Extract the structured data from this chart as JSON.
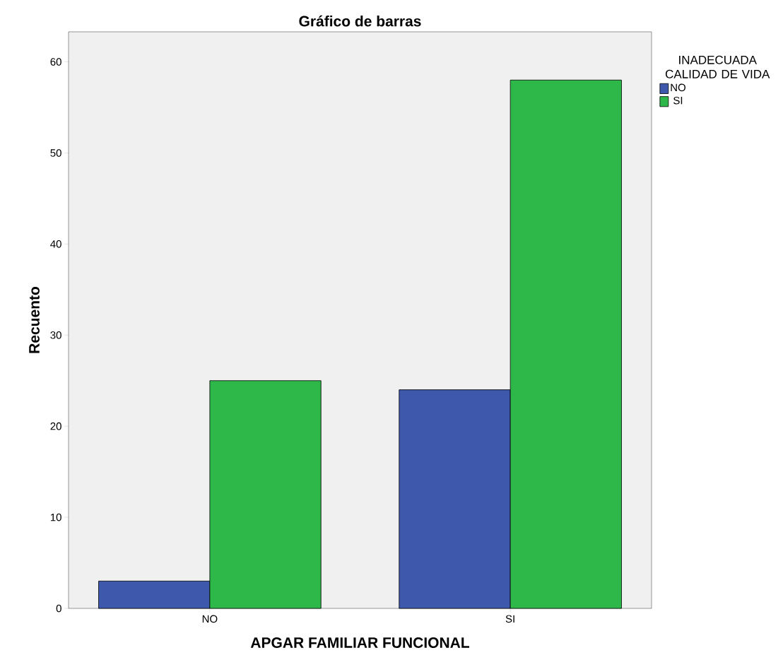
{
  "chart_data": {
    "type": "bar",
    "title": "Gráfico de barras",
    "xlabel": "APGAR FAMILIAR FUNCIONAL",
    "ylabel": "Recuento",
    "legend_title": "INADECUADA CALIDAD DE VIDA",
    "categories": [
      "NO",
      "SI"
    ],
    "series": [
      {
        "name": "NO",
        "color": "#3e58ac",
        "values": [
          3,
          24
        ]
      },
      {
        "name": "SI",
        "color": "#2fb84a",
        "values": [
          25,
          58
        ]
      }
    ],
    "ylim": [
      0,
      63.3
    ],
    "yticks": [
      0,
      10,
      20,
      30,
      40,
      50,
      60
    ],
    "grid": false,
    "legend": "top right"
  }
}
